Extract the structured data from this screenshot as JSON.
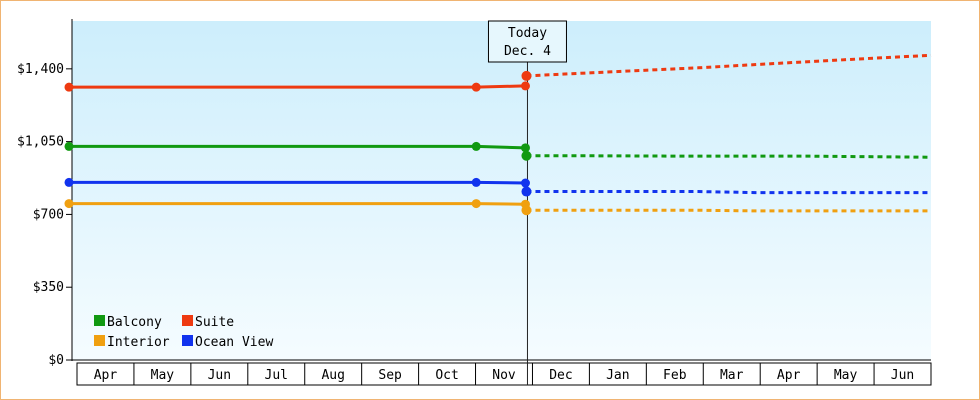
{
  "chart_data": {
    "type": "line",
    "title": "",
    "xlabel": "",
    "ylabel": "",
    "ylim": [
      0,
      1630
    ],
    "y_ticks": [
      0,
      350,
      700,
      1050,
      1400
    ],
    "y_tick_labels": [
      "$0",
      "$350",
      "$700",
      "$1,050",
      "$1,400"
    ],
    "x_categories": [
      "Apr",
      "May",
      "Jun",
      "Jul",
      "Aug",
      "Sep",
      "Oct",
      "Nov",
      "Dec",
      "Jan",
      "Feb",
      "Mar",
      "Apr",
      "May",
      "Jun"
    ],
    "today_marker": {
      "line1": "Today",
      "line2": "Dec. 4",
      "position": 8.0
    },
    "grid": false,
    "legend_placement": "bottom-left",
    "series": [
      {
        "name": "Balcony",
        "color": "#119911",
        "history": [
          [
            0,
            1027
          ],
          [
            7.1,
            1027
          ],
          [
            8.0,
            1020
          ]
        ],
        "forecast": [
          [
            8.0,
            982
          ],
          [
            9.0,
            982
          ],
          [
            11.0,
            980
          ],
          [
            13.0,
            980
          ],
          [
            15.0,
            975
          ]
        ]
      },
      {
        "name": "Suite",
        "color": "#ee3a11",
        "history": [
          [
            0,
            1312
          ],
          [
            7.1,
            1312
          ],
          [
            8.0,
            1318
          ]
        ],
        "forecast": [
          [
            8.0,
            1366
          ],
          [
            9.5,
            1386
          ],
          [
            11.0,
            1405
          ],
          [
            12.5,
            1428
          ],
          [
            14.0,
            1450
          ],
          [
            15.0,
            1465
          ]
        ]
      },
      {
        "name": "Interior",
        "color": "#f0a010",
        "history": [
          [
            0,
            752
          ],
          [
            7.1,
            752
          ],
          [
            8.0,
            749
          ]
        ],
        "forecast": [
          [
            8.0,
            720
          ],
          [
            11.0,
            720
          ],
          [
            12.0,
            717
          ],
          [
            15.0,
            717
          ]
        ]
      },
      {
        "name": "Ocean View",
        "color": "#1133ee",
        "history": [
          [
            0,
            854
          ],
          [
            7.1,
            854
          ],
          [
            8.0,
            851
          ]
        ],
        "forecast": [
          [
            8.0,
            810
          ],
          [
            11.0,
            810
          ],
          [
            12.0,
            805
          ],
          [
            15.0,
            805
          ]
        ]
      }
    ]
  }
}
